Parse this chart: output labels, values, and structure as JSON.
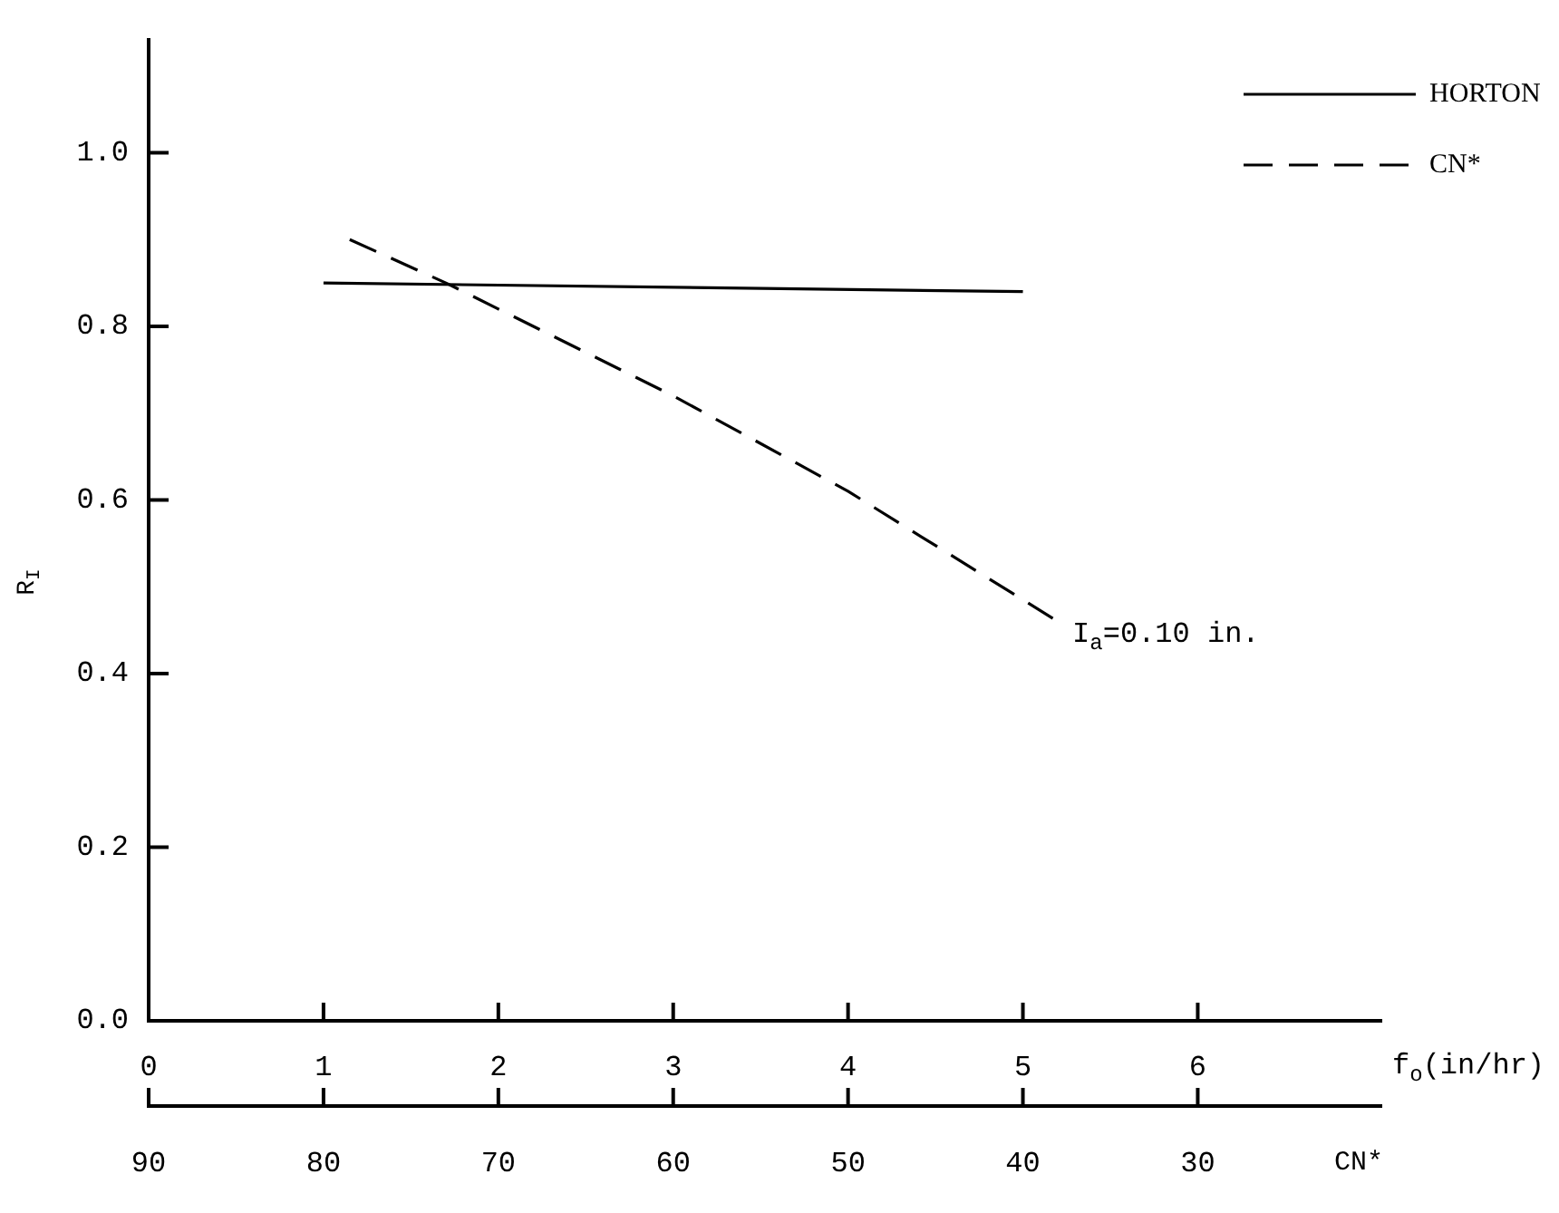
{
  "chart_data": {
    "type": "line",
    "xlabel": "f$_{o}$(in/hr)",
    "x2label": "CN*",
    "ylabel": "R$_{I}$",
    "xlim": [
      0,
      7.05
    ],
    "xticks": [
      0,
      1,
      2,
      3,
      4,
      5,
      6
    ],
    "x2lim": [
      90,
      19.5
    ],
    "x2ticks": [
      90,
      80,
      70,
      60,
      50,
      40,
      30
    ],
    "ylim": [
      0,
      1.13
    ],
    "yticks": [
      {
        "value": 0,
        "label": "0.0"
      },
      0.2,
      0.4,
      0.6,
      0.8,
      {
        "value": 1,
        "label": "1.0"
      }
    ],
    "grid": false,
    "legend": "top right",
    "marker": "none",
    "series": [
      {
        "name": "HORTON",
        "color": "#000000",
        "line_style": "solid",
        "x": [
          1.0,
          5.0
        ],
        "values": [
          0.85,
          0.84
        ]
      },
      {
        "name": "CN*",
        "color": "#000000",
        "line_style": "dashed",
        "x": [
          1.15,
          1.7,
          2.0,
          3.0,
          4.0,
          5.2
        ],
        "values": [
          0.9,
          0.85,
          0.82,
          0.72,
          0.61,
          0.46
        ]
      }
    ],
    "annotations": [
      {
        "text": "I$_{a}$=0.10 in.",
        "x": 5.2,
        "y": 0.46
      }
    ]
  }
}
